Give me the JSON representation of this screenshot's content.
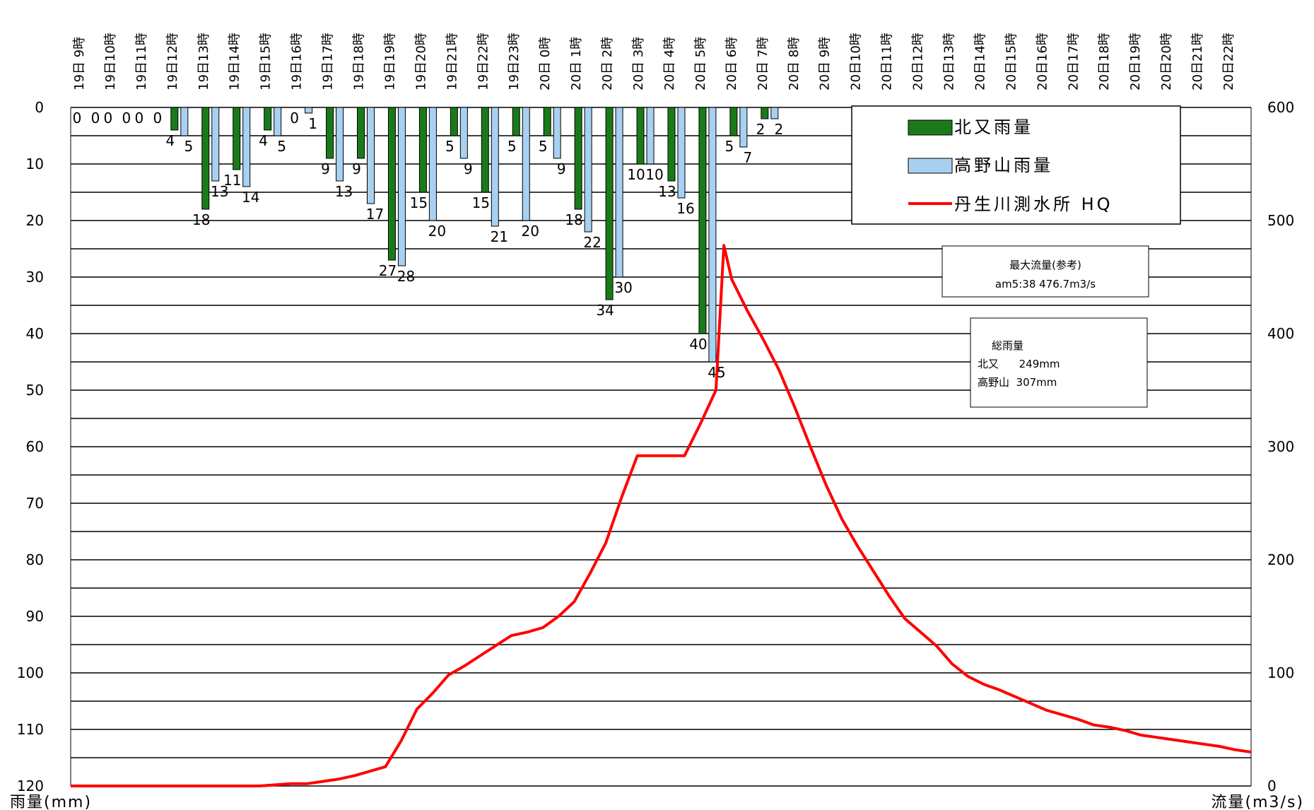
{
  "chart_data": {
    "type": "bar",
    "categories": [
      "19日 9時",
      "19日10時",
      "19日11時",
      "19日12時",
      "19日13時",
      "19日14時",
      "19日15時",
      "19日16時",
      "19日17時",
      "19日18時",
      "19日19時",
      "19日20時",
      "19日21時",
      "19日22時",
      "19日23時",
      "20日 0時",
      "20日 1時",
      "20日 2時",
      "20日 3時",
      "20日 4時",
      "20日 5時",
      "20日 6時",
      "20日 7時",
      "20日 8時",
      "20日 9時",
      "20日10時",
      "20日11時",
      "20日12時",
      "20日13時",
      "20日14時",
      "20日15時",
      "20日16時",
      "20日17時",
      "20日18時",
      "20日19時",
      "20日20時",
      "20日21時",
      "20日22時"
    ],
    "series": [
      {
        "name": "北又雨量",
        "axis": "left",
        "color": "#1a7a1a",
        "values": [
          0,
          0,
          0,
          4,
          18,
          11,
          4,
          0,
          9,
          9,
          27,
          15,
          5,
          15,
          5,
          5,
          18,
          34,
          10,
          13,
          40,
          5,
          2,
          null,
          null,
          null,
          null,
          null,
          null,
          null,
          null,
          null,
          null,
          null,
          null,
          null,
          null,
          null
        ]
      },
      {
        "name": "高野山雨量",
        "axis": "left",
        "color": "#a8d0f0",
        "values": [
          0,
          0,
          0,
          5,
          13,
          14,
          5,
          1,
          13,
          17,
          28,
          20,
          9,
          21,
          20,
          9,
          22,
          30,
          10,
          16,
          45,
          7,
          2,
          null,
          null,
          null,
          null,
          null,
          null,
          null,
          null,
          null,
          null,
          null,
          null,
          null,
          null,
          null
        ]
      },
      {
        "name": "丹生川測水所 HQ",
        "axis": "right",
        "type": "line",
        "color": "#ff0000",
        "x": [
          0,
          1,
          2,
          3,
          4,
          5,
          6,
          7,
          7.5,
          8,
          8.5,
          9,
          9.5,
          10,
          10.5,
          11,
          11.5,
          12,
          12.5,
          13,
          13.5,
          14,
          14.5,
          15,
          15.5,
          16,
          16.5,
          17,
          17.5,
          18,
          18.5,
          19,
          19.5,
          20,
          20.5,
          20.75,
          21,
          21.5,
          22,
          22.5,
          23,
          23.5,
          24,
          24.5,
          25,
          25.5,
          26,
          26.5,
          27,
          27.5,
          28,
          28.5,
          29,
          29.5,
          30,
          30.5,
          31,
          31.5,
          32,
          32.5,
          33,
          33.5,
          34,
          34.5,
          35,
          35.5,
          36,
          36.5,
          37,
          37.5
        ],
        "values": [
          0,
          0,
          0,
          0,
          0,
          0,
          0,
          2,
          2,
          4,
          6,
          9,
          13,
          17,
          40,
          68,
          82,
          98,
          106,
          115,
          124,
          133,
          136,
          140,
          150,
          163,
          188,
          215,
          255,
          292,
          292,
          292,
          292,
          320,
          350,
          478,
          448,
          420,
          395,
          368,
          335,
          300,
          266,
          236,
          212,
          190,
          168,
          148,
          136,
          124,
          108,
          97,
          90,
          85,
          79,
          73,
          67,
          63,
          59,
          54,
          52,
          49,
          45,
          43,
          41,
          39,
          37,
          35,
          32,
          30
        ]
      }
    ],
    "left_axis": {
      "label": "雨量(mm)",
      "ylim": [
        120,
        0
      ],
      "ticks": [
        "0",
        "10",
        "20",
        "30",
        "40",
        "50",
        "60",
        "70",
        "80",
        "90",
        "100",
        "110",
        "120"
      ]
    },
    "right_axis": {
      "label": "流量(m3/s)",
      "ylim": [
        0,
        600
      ],
      "ticks": [
        "0",
        "100",
        "200",
        "300",
        "400",
        "500",
        "600"
      ]
    },
    "legend": {
      "placement": "top-right"
    },
    "grid": true,
    "annotations": [
      {
        "title": "最大流量(参考)",
        "lines": [
          "am5:38   476.7m3/s"
        ]
      },
      {
        "title": "総雨量",
        "lines": [
          "北又      249mm",
          "高野山  307mm"
        ]
      }
    ]
  }
}
